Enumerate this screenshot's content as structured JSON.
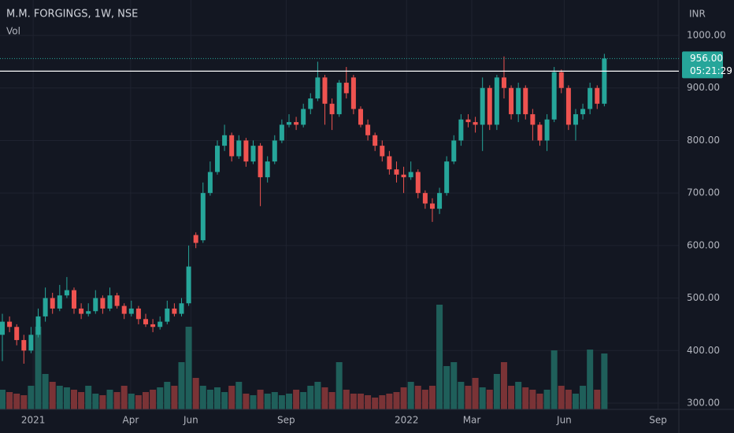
{
  "chart_data": {
    "type": "candlestick",
    "title": "M.M. FORGINGS, 1W, NSE",
    "volume_label": "Vol",
    "currency": "INR",
    "up_color": "#26a69a",
    "down_color": "#ef5350",
    "volume_up_color": "#1f5f5a",
    "volume_down_color": "#7a3336",
    "open": [
      430,
      455,
      445,
      420,
      400,
      430,
      465,
      500,
      480,
      505,
      515,
      480,
      470,
      475,
      500,
      480,
      505,
      485,
      470,
      480,
      460,
      450,
      445,
      455,
      480,
      470,
      490,
      620,
      610,
      700,
      740,
      790,
      810,
      770,
      800,
      760,
      790,
      730,
      760,
      800,
      830,
      835,
      830,
      860,
      880,
      920,
      870,
      850,
      910,
      920,
      860,
      830,
      810,
      790,
      770,
      745,
      735,
      730,
      740,
      700,
      680,
      670,
      700,
      760,
      800,
      840,
      835,
      830,
      900,
      830,
      920,
      900,
      850,
      900,
      850,
      830,
      800,
      840,
      930,
      900,
      830,
      850,
      860,
      900,
      870
    ],
    "high": [
      470,
      465,
      450,
      430,
      445,
      480,
      520,
      510,
      525,
      540,
      520,
      490,
      490,
      515,
      505,
      520,
      510,
      490,
      495,
      485,
      470,
      460,
      465,
      495,
      490,
      500,
      600,
      625,
      720,
      760,
      800,
      830,
      815,
      810,
      805,
      800,
      795,
      770,
      810,
      840,
      850,
      845,
      870,
      890,
      950,
      925,
      880,
      915,
      940,
      925,
      865,
      840,
      815,
      800,
      780,
      760,
      750,
      760,
      745,
      705,
      690,
      710,
      770,
      810,
      850,
      850,
      845,
      920,
      905,
      925,
      960,
      905,
      910,
      905,
      860,
      835,
      850,
      940,
      935,
      905,
      860,
      870,
      910,
      905,
      965
    ],
    "low": [
      380,
      435,
      410,
      375,
      395,
      425,
      455,
      470,
      475,
      500,
      470,
      460,
      465,
      470,
      470,
      475,
      480,
      460,
      465,
      450,
      445,
      435,
      440,
      450,
      465,
      465,
      485,
      595,
      605,
      695,
      735,
      780,
      760,
      765,
      750,
      755,
      675,
      720,
      755,
      795,
      825,
      820,
      825,
      850,
      875,
      830,
      820,
      845,
      880,
      850,
      825,
      800,
      780,
      760,
      735,
      720,
      700,
      725,
      690,
      670,
      645,
      660,
      695,
      755,
      790,
      825,
      815,
      780,
      820,
      820,
      880,
      840,
      835,
      840,
      800,
      790,
      780,
      835,
      890,
      820,
      800,
      840,
      850,
      860,
      865
    ],
    "close": [
      455,
      445,
      420,
      400,
      430,
      465,
      500,
      480,
      505,
      515,
      480,
      470,
      475,
      500,
      480,
      505,
      485,
      470,
      480,
      460,
      450,
      445,
      455,
      480,
      470,
      490,
      560,
      605,
      700,
      740,
      790,
      810,
      770,
      800,
      760,
      790,
      730,
      760,
      800,
      830,
      835,
      830,
      860,
      880,
      920,
      870,
      850,
      910,
      890,
      860,
      830,
      810,
      790,
      770,
      745,
      735,
      730,
      740,
      700,
      680,
      670,
      700,
      760,
      800,
      840,
      835,
      830,
      900,
      830,
      920,
      900,
      850,
      900,
      850,
      830,
      800,
      840,
      930,
      900,
      830,
      850,
      860,
      900,
      870,
      956
    ],
    "volume": [
      25,
      22,
      20,
      18,
      30,
      105,
      45,
      35,
      30,
      28,
      25,
      22,
      30,
      20,
      18,
      25,
      22,
      30,
      20,
      18,
      22,
      25,
      28,
      35,
      30,
      60,
      105,
      40,
      30,
      25,
      28,
      22,
      30,
      35,
      20,
      18,
      25,
      20,
      22,
      18,
      20,
      25,
      22,
      30,
      35,
      28,
      22,
      60,
      25,
      20,
      20,
      18,
      15,
      18,
      20,
      22,
      28,
      35,
      30,
      25,
      30,
      133,
      55,
      60,
      35,
      30,
      40,
      28,
      25,
      45,
      60,
      30,
      35,
      28,
      25,
      20,
      25,
      75,
      30,
      25,
      20,
      30,
      76,
      25,
      71
    ],
    "vlim": [
      0,
      150
    ],
    "xlim": [
      -0.33,
      94.4
    ],
    "xticks": [
      {
        "value": 4.3,
        "label": "2021"
      },
      {
        "value": 17.9,
        "label": "Apr"
      },
      {
        "value": 26.3,
        "label": "Jun"
      },
      {
        "value": 39.6,
        "label": "Sep"
      },
      {
        "value": 56.4,
        "label": "2022"
      },
      {
        "value": 65.5,
        "label": "Mar"
      },
      {
        "value": 78.4,
        "label": "Jun"
      },
      {
        "value": 91.5,
        "label": "Sep"
      }
    ],
    "ylim": [
      288,
      1067.5
    ],
    "yticks": [
      {
        "value": 300,
        "label": "300.00"
      },
      {
        "value": 400,
        "label": "400.00"
      },
      {
        "value": 500,
        "label": "500.00"
      },
      {
        "value": 600,
        "label": "600.00"
      },
      {
        "value": 700,
        "label": "700.00"
      },
      {
        "value": 800,
        "label": "800.00"
      },
      {
        "value": 900,
        "label": "900.00"
      },
      {
        "value": 1000,
        "label": "1000.00"
      }
    ],
    "grid": true,
    "hline": 932,
    "price_tag": {
      "value": 956,
      "label": "956.00",
      "countdown": "05:21:29"
    }
  }
}
